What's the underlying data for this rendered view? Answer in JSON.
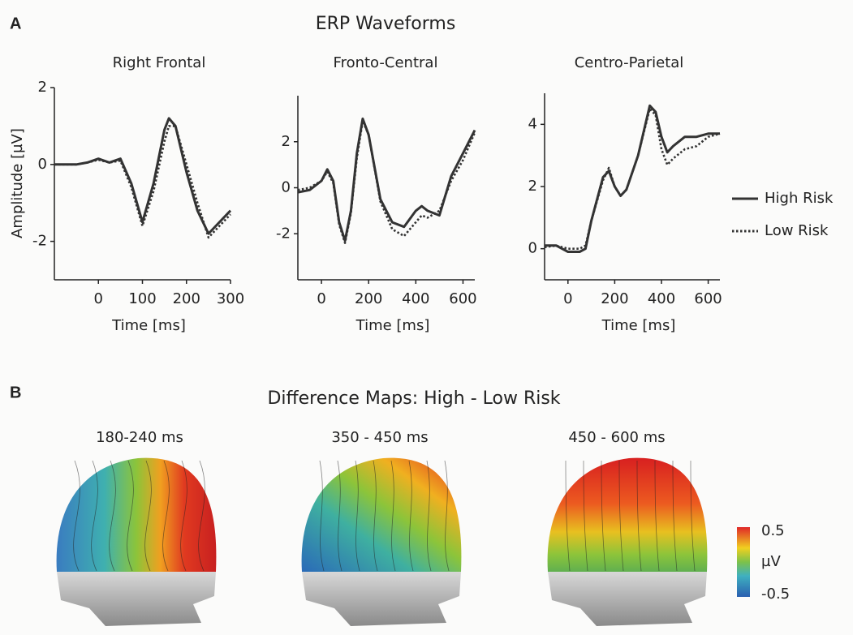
{
  "panel_a": {
    "label": "A",
    "title": "ERP Waveforms"
  },
  "chart_data": [
    {
      "type": "line",
      "title": "Right Frontal",
      "xlabel": "Time [ms]",
      "ylabel": "Amplitude [µV]",
      "x": [
        -100,
        -75,
        -50,
        -25,
        0,
        25,
        50,
        75,
        100,
        125,
        150,
        160,
        175,
        200,
        225,
        250,
        275,
        300
      ],
      "xlim": [
        -100,
        300
      ],
      "xticks": [
        0,
        100,
        200,
        300
      ],
      "ylim": [
        -3,
        2
      ],
      "yticks": [
        -2,
        0,
        2
      ],
      "series": [
        {
          "name": "High Risk",
          "color": "#333333",
          "dash": "solid",
          "values": [
            0,
            0,
            0,
            0.05,
            0.15,
            0.05,
            0.15,
            -0.5,
            -1.5,
            -0.5,
            0.9,
            1.2,
            1.0,
            -0.2,
            -1.2,
            -1.8,
            -1.5,
            -1.2
          ]
        },
        {
          "name": "Low Risk",
          "color": "#333333",
          "dash": "dotted",
          "values": [
            0,
            0,
            0,
            0.05,
            0.12,
            0.05,
            0.1,
            -0.6,
            -1.6,
            -0.7,
            0.6,
            1.0,
            1.0,
            0.0,
            -1.0,
            -1.9,
            -1.6,
            -1.3
          ]
        }
      ]
    },
    {
      "type": "line",
      "title": "Fronto-Central",
      "xlabel": "Time [ms]",
      "x": [
        -100,
        -50,
        0,
        25,
        50,
        75,
        100,
        125,
        150,
        175,
        200,
        250,
        300,
        350,
        400,
        425,
        450,
        500,
        550,
        600,
        650
      ],
      "xlim": [
        -100,
        650
      ],
      "xticks": [
        0,
        200,
        400,
        600
      ],
      "ylim": [
        -4,
        4
      ],
      "yticks": [
        -2,
        0,
        2
      ],
      "series": [
        {
          "color": "#333333",
          "dash": "solid",
          "values": [
            -0.2,
            -0.1,
            0.3,
            0.8,
            0.3,
            -1.5,
            -2.3,
            -1.0,
            1.5,
            3.0,
            2.3,
            -0.5,
            -1.5,
            -1.7,
            -1.0,
            -0.8,
            -1.0,
            -1.2,
            0.5,
            1.5,
            2.5
          ]
        },
        {
          "color": "#333333",
          "dash": "dotted",
          "values": [
            -0.1,
            0.0,
            0.3,
            0.7,
            0.2,
            -1.6,
            -2.4,
            -1.1,
            1.3,
            2.9,
            2.3,
            -0.6,
            -1.8,
            -2.1,
            -1.5,
            -1.2,
            -1.3,
            -1.0,
            0.3,
            1.2,
            2.4
          ]
        }
      ]
    },
    {
      "type": "line",
      "title": "Centro-Parietal",
      "xlabel": "Time [ms]",
      "x": [
        -100,
        -50,
        0,
        50,
        75,
        100,
        150,
        175,
        200,
        225,
        250,
        300,
        350,
        375,
        400,
        425,
        450,
        500,
        550,
        600,
        650
      ],
      "xlim": [
        -100,
        650
      ],
      "xticks": [
        0,
        200,
        400,
        600
      ],
      "ylim": [
        -1,
        5
      ],
      "yticks": [
        0,
        2,
        4
      ],
      "series": [
        {
          "color": "#333333",
          "dash": "solid",
          "values": [
            0.1,
            0.1,
            -0.1,
            -0.1,
            0,
            0.9,
            2.3,
            2.5,
            2.0,
            1.7,
            1.9,
            3.0,
            4.6,
            4.4,
            3.6,
            3.1,
            3.3,
            3.6,
            3.6,
            3.7,
            3.7
          ]
        },
        {
          "color": "#333333",
          "dash": "dotted",
          "values": [
            0.05,
            0.1,
            0.0,
            0.0,
            0.1,
            0.9,
            2.2,
            2.6,
            2.0,
            1.7,
            1.9,
            3.0,
            4.5,
            4.3,
            3.2,
            2.7,
            2.9,
            3.2,
            3.3,
            3.6,
            3.7
          ]
        }
      ]
    }
  ],
  "panel_b": {
    "label": "B",
    "title": "Difference Maps: High - Low Risk",
    "maps": [
      "180-240 ms",
      "350 - 450 ms",
      "450 - 600 ms"
    ],
    "colorbar": {
      "lim": [
        -0.5,
        0.5
      ],
      "ticks": [
        0.5,
        -0.5
      ],
      "unit": "µV"
    }
  }
}
